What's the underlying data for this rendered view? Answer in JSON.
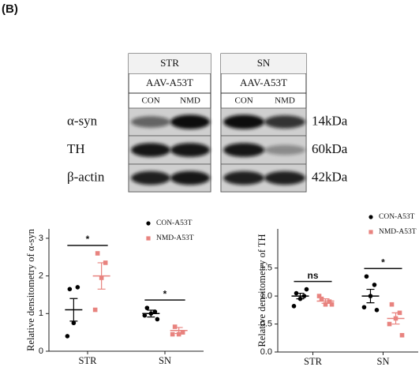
{
  "panel_label": "(B)",
  "blot": {
    "groups": [
      {
        "region": "STR",
        "treatment": "AAV-A53T",
        "lanes": [
          "CON",
          "NMD"
        ]
      },
      {
        "region": "SN",
        "treatment": "AAV-A53T",
        "lanes": [
          "CON",
          "NMD"
        ]
      }
    ],
    "proteins": [
      "α-syn",
      "TH",
      "β-actin"
    ],
    "sizes": [
      "14kDa",
      "60kDa",
      "42kDa"
    ]
  },
  "chart_data": [
    {
      "type": "dot",
      "y_label": "Relative densitometry of α-syn",
      "categories": [
        "STR",
        "SN"
      ],
      "series": [
        {
          "name": "CON-A53T",
          "color": "#000000",
          "marker": "circle",
          "values": [
            [
              1.65,
              1.7,
              0.75,
              0.4
            ],
            [
              1.15,
              1.05,
              1.0,
              0.95,
              0.85
            ]
          ],
          "means": [
            1.1,
            1.0
          ],
          "sems": [
            0.3,
            0.09
          ]
        },
        {
          "name": "NMD-A53T",
          "color": "#e8837f",
          "marker": "square",
          "values": [
            [
              2.6,
              2.35,
              1.95,
              1.1
            ],
            [
              0.65,
              0.5,
              0.45,
              0.45
            ]
          ],
          "means": [
            2.0,
            0.55
          ],
          "sems": [
            0.35,
            0.08
          ]
        }
      ],
      "significance": [
        "*",
        "*"
      ],
      "ylim": [
        0,
        3.25
      ],
      "yticks": [
        0,
        1,
        2,
        3
      ]
    },
    {
      "type": "dot",
      "y_label": "Relative densitometry of TH",
      "categories": [
        "STR",
        "SN"
      ],
      "series": [
        {
          "name": "CON-A53T",
          "color": "#000000",
          "marker": "circle",
          "values": [
            [
              1.05,
              1.0,
              0.95,
              0.82,
              1.12
            ],
            [
              1.35,
              1.2,
              1.0,
              0.8,
              0.75
            ]
          ],
          "means": [
            1.0,
            1.0
          ],
          "sems": [
            0.05,
            0.12
          ]
        },
        {
          "name": "NMD-A53T",
          "color": "#e8837f",
          "marker": "square",
          "values": [
            [
              0.95,
              0.9,
              0.85,
              1.0,
              0.85
            ],
            [
              0.85,
              0.7,
              0.6,
              0.5,
              0.3
            ]
          ],
          "means": [
            0.91,
            0.6
          ],
          "sems": [
            0.04,
            0.1
          ]
        }
      ],
      "significance": [
        "ns",
        "*"
      ],
      "ylim": [
        0,
        2.2
      ],
      "yticks": [
        {
          "value": 0,
          "label": "0.0"
        },
        0.5,
        {
          "value": 1,
          "label": "1.0"
        },
        1.5
      ]
    }
  ]
}
